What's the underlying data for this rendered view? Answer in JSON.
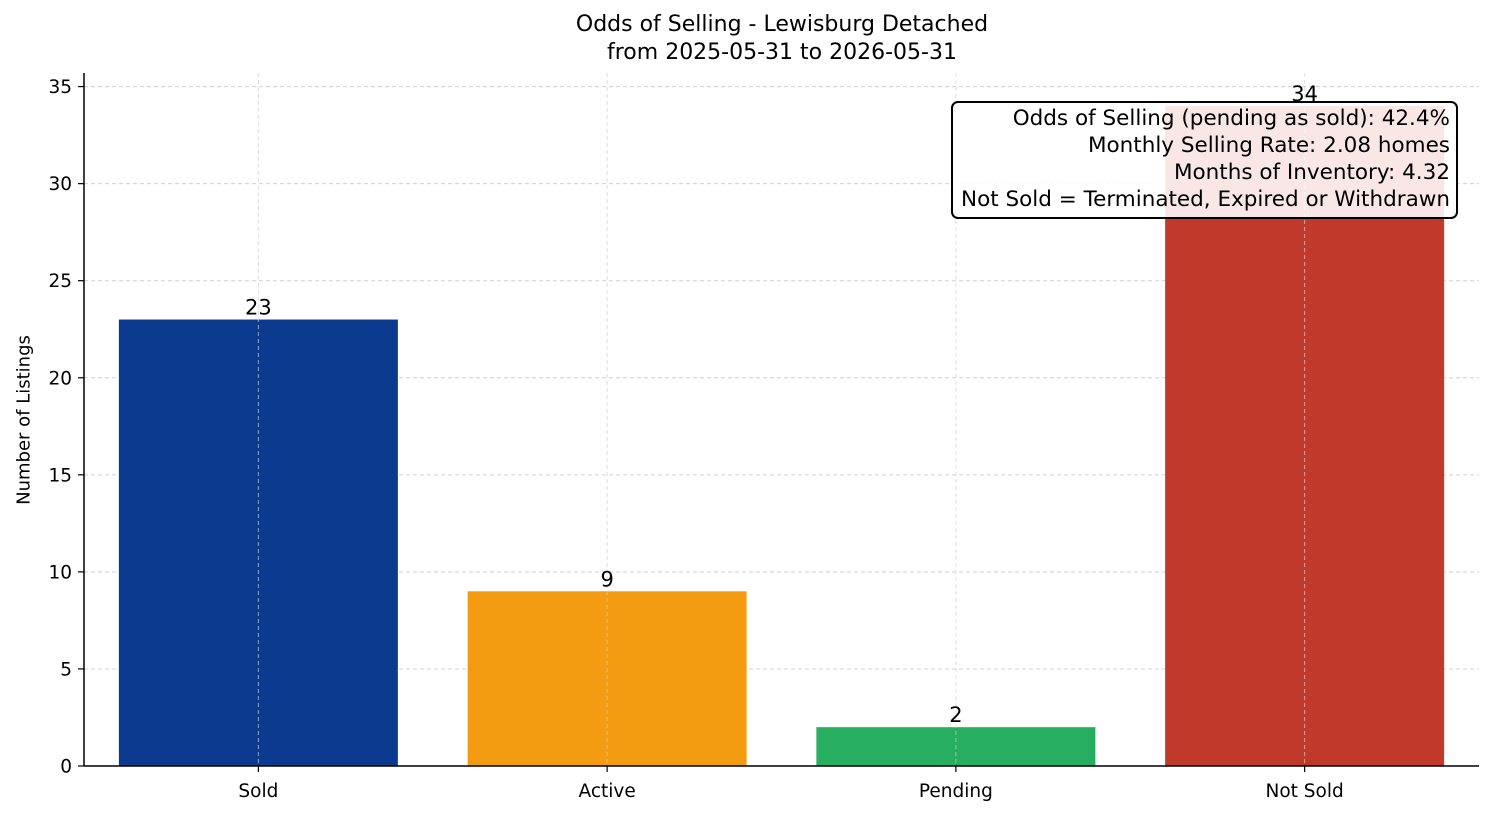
{
  "chart_data": {
    "type": "bar",
    "title_lines": [
      "Odds of Selling - Lewisburg Detached",
      "from 2025-05-31 to 2026-05-31"
    ],
    "xlabel": "",
    "ylabel": "Number of Listings",
    "categories": [
      "Sold",
      "Active",
      "Pending",
      "Not Sold"
    ],
    "values": [
      23,
      9,
      2,
      34
    ],
    "colors": [
      "#0b3a8f",
      "#f39c12",
      "#27ae60",
      "#c0392b"
    ],
    "ylim": [
      0,
      35.7
    ],
    "yticks": [
      0,
      5,
      10,
      15,
      20,
      25,
      30,
      35
    ],
    "grid": true,
    "annotation_lines": [
      "Odds of Selling (pending as sold): 42.4%",
      "Monthly Selling Rate: 2.08 homes",
      "Months of Inventory: 4.32",
      "Not Sold = Terminated, Expired or Withdrawn"
    ],
    "annotation_placement": "top-right"
  }
}
